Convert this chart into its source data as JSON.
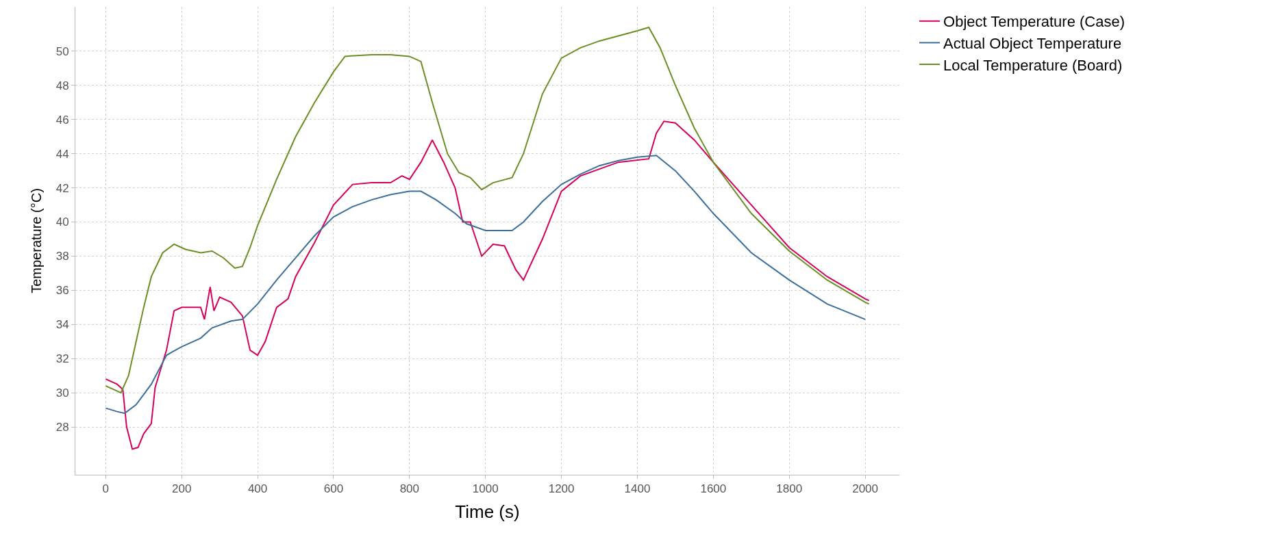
{
  "chart_data": {
    "type": "line",
    "xlabel": "Time (s)",
    "ylabel": "Temperature (°C)",
    "xlim": [
      -80,
      2090
    ],
    "ylim": [
      25.2,
      52.6
    ],
    "xticks": [
      0,
      200,
      400,
      600,
      800,
      1000,
      1200,
      1400,
      1600,
      1800,
      2000
    ],
    "yticks": [
      28,
      30,
      32,
      34,
      36,
      38,
      40,
      42,
      44,
      46,
      48,
      50
    ],
    "grid": true,
    "legend": "top right",
    "marker": "none",
    "line_style": "solid",
    "series": [
      {
        "name": "Object Temperature (Case)",
        "color": "#d5005a",
        "x": [
          0,
          30,
          45,
          55,
          70,
          85,
          100,
          120,
          130,
          160,
          180,
          200,
          250,
          260,
          275,
          285,
          300,
          330,
          360,
          380,
          400,
          420,
          450,
          480,
          500,
          550,
          600,
          650,
          700,
          750,
          780,
          800,
          830,
          860,
          890,
          920,
          940,
          960,
          990,
          1020,
          1050,
          1080,
          1100,
          1150,
          1200,
          1250,
          1300,
          1350,
          1430,
          1450,
          1470,
          1500,
          1550,
          1600,
          1700,
          1800,
          1900,
          2000,
          2010
        ],
        "values": [
          30.8,
          30.5,
          30.2,
          28,
          26.7,
          26.8,
          27.6,
          28.2,
          30.3,
          32.5,
          34.8,
          35,
          35,
          34.3,
          36.2,
          34.8,
          35.6,
          35.3,
          34.5,
          32.5,
          32.2,
          33,
          35,
          35.5,
          36.8,
          38.8,
          41,
          42.2,
          42.3,
          42.3,
          42.7,
          42.5,
          43.5,
          44.8,
          43.5,
          42,
          40,
          40,
          38,
          38.7,
          38.6,
          37.2,
          36.6,
          39,
          41.8,
          42.7,
          43.1,
          43.5,
          43.7,
          45.2,
          45.9,
          45.8,
          44.8,
          43.5,
          41,
          38.5,
          36.8,
          35.5,
          35.4
        ]
      },
      {
        "name": "Actual Object Temperature",
        "color": "#3c6e9b",
        "x": [
          0,
          30,
          50,
          80,
          120,
          160,
          200,
          250,
          280,
          330,
          360,
          400,
          450,
          500,
          550,
          600,
          650,
          700,
          750,
          800,
          830,
          870,
          920,
          950,
          1000,
          1070,
          1100,
          1150,
          1200,
          1250,
          1300,
          1350,
          1400,
          1450,
          1500,
          1550,
          1600,
          1700,
          1800,
          1900,
          2000
        ],
        "values": [
          29.1,
          28.9,
          28.8,
          29.3,
          30.5,
          32.2,
          32.7,
          33.2,
          33.8,
          34.2,
          34.3,
          35.2,
          36.6,
          37.9,
          39.2,
          40.3,
          40.9,
          41.3,
          41.6,
          41.8,
          41.8,
          41.3,
          40.5,
          39.9,
          39.5,
          39.5,
          40,
          41.2,
          42.2,
          42.8,
          43.3,
          43.6,
          43.8,
          43.9,
          43,
          41.8,
          40.5,
          38.2,
          36.6,
          35.2,
          34.3
        ]
      },
      {
        "name": "Local Temperature (Board)",
        "color": "#6b8e23",
        "x": [
          0,
          20,
          40,
          60,
          80,
          100,
          120,
          150,
          180,
          210,
          250,
          280,
          310,
          340,
          360,
          380,
          400,
          450,
          500,
          550,
          600,
          630,
          700,
          750,
          800,
          830,
          860,
          900,
          930,
          960,
          990,
          1020,
          1070,
          1100,
          1150,
          1200,
          1250,
          1300,
          1350,
          1400,
          1430,
          1460,
          1500,
          1550,
          1600,
          1700,
          1800,
          1900,
          2000,
          2010
        ],
        "values": [
          30.4,
          30.2,
          30.0,
          31,
          33,
          35,
          36.8,
          38.2,
          38.7,
          38.4,
          38.2,
          38.3,
          37.9,
          37.3,
          37.4,
          38.5,
          39.8,
          42.5,
          45,
          47,
          48.8,
          49.7,
          49.8,
          49.8,
          49.7,
          49.4,
          47,
          44,
          42.9,
          42.6,
          41.9,
          42.3,
          42.6,
          44,
          47.5,
          49.6,
          50.2,
          50.6,
          50.9,
          51.2,
          51.4,
          50.2,
          48,
          45.5,
          43.5,
          40.5,
          38.3,
          36.6,
          35.3,
          35.2
        ]
      }
    ]
  }
}
